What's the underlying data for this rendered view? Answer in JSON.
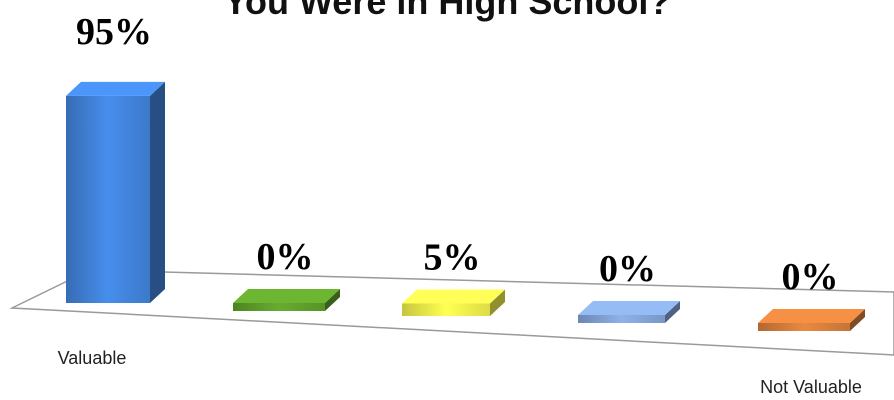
{
  "chart_data": {
    "type": "bar",
    "title": "You Were in High School?",
    "categories": [
      "Valuable",
      "",
      "",
      "",
      "Not Valuable"
    ],
    "values": [
      95,
      0,
      5,
      0,
      0
    ],
    "value_labels": [
      "95%",
      "0%",
      "5%",
      "0%",
      "0%"
    ],
    "colors": [
      "#3f7fd4",
      "#5c9a2a",
      "#e8e84a",
      "#7f9fd0",
      "#d07a3a"
    ],
    "ylim": [
      0,
      100
    ],
    "style": "3d-column",
    "grid": false,
    "legend": "none"
  }
}
